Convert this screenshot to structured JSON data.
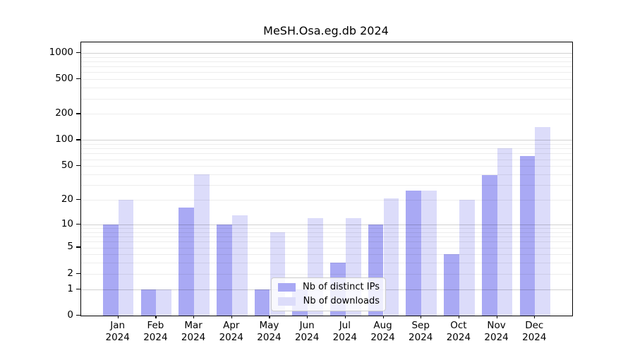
{
  "chart_data": {
    "type": "bar",
    "title": "MeSH.Osa.eg.db 2024",
    "xlabel": "",
    "ylabel": "",
    "months": [
      "Jan",
      "Feb",
      "Mar",
      "Apr",
      "May",
      "Jun",
      "Jul",
      "Aug",
      "Sep",
      "Oct",
      "Nov",
      "Dec"
    ],
    "year": "2024",
    "categories": [
      "Jan 2024",
      "Feb 2024",
      "Mar 2024",
      "Apr 2024",
      "May 2024",
      "Jun 2024",
      "Jul 2024",
      "Aug 2024",
      "Sep 2024",
      "Oct 2024",
      "Nov 2024",
      "Dec 2024"
    ],
    "series": [
      {
        "name": "Nb of distinct IPs",
        "color": "#a9a9f4",
        "values": [
          10,
          1,
          16,
          10,
          1,
          1,
          3,
          10,
          26,
          4,
          39,
          66
        ]
      },
      {
        "name": "Nb of downloads",
        "color": "#dcdcfa",
        "values": [
          20,
          1,
          40,
          13,
          8,
          12,
          12,
          21,
          26,
          20,
          80,
          140
        ]
      }
    ],
    "yscale": "log10(1+x)",
    "yticks": [
      0,
      1,
      2,
      5,
      10,
      20,
      50,
      100,
      200,
      500,
      1000
    ],
    "ylim": [
      0,
      1318
    ],
    "grid": true,
    "legend_position": "lower center"
  },
  "colors": {
    "major_grid": "rgba(0,0,0,0.18)",
    "minor_grid": "rgba(0,0,0,0.07)",
    "spine": "#000000",
    "background": "#ffffff"
  }
}
